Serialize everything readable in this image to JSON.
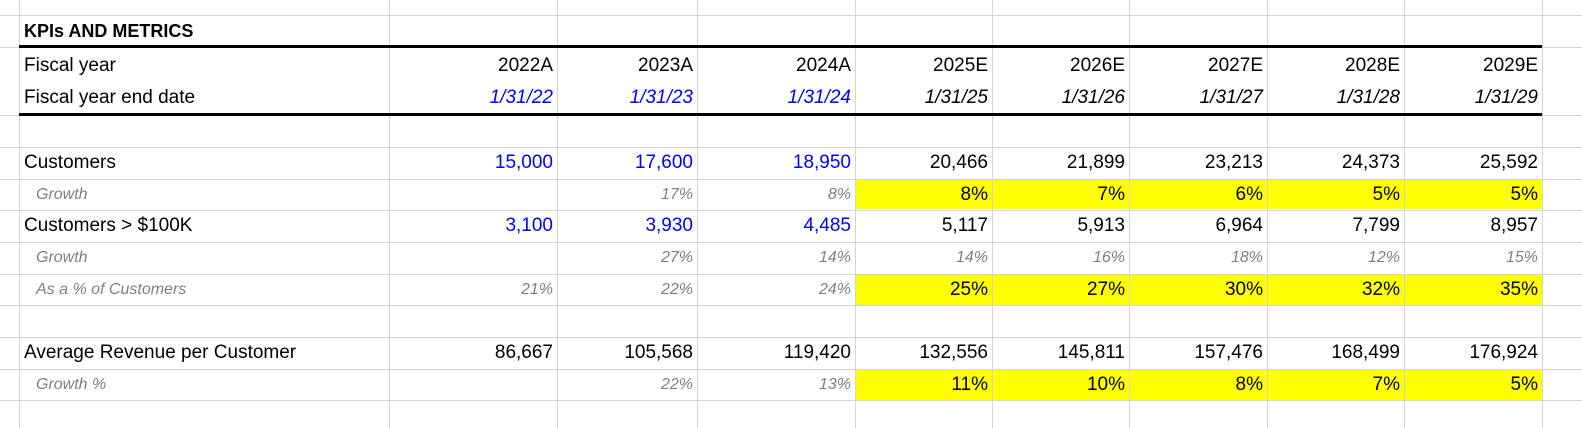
{
  "sheet": {
    "title": "KPIs AND METRICS",
    "fiscal_year_label": "Fiscal year",
    "fiscal_year_end_label": "Fiscal year end date",
    "years": [
      "2022A",
      "2023A",
      "2024A",
      "2025E",
      "2026E",
      "2027E",
      "2028E",
      "2029E"
    ],
    "end_dates": [
      "1/31/22",
      "1/31/23",
      "1/31/24",
      "1/31/25",
      "1/31/26",
      "1/31/27",
      "1/31/28",
      "1/31/29"
    ],
    "rows": [
      {
        "label": "Customers",
        "style": "main",
        "values": [
          "15,000",
          "17,600",
          "18,950",
          "20,466",
          "21,899",
          "23,213",
          "24,373",
          "25,592"
        ]
      },
      {
        "label": "Growth",
        "style": "sub",
        "values": [
          "",
          "17%",
          "8%",
          "8%",
          "7%",
          "6%",
          "5%",
          "5%"
        ]
      },
      {
        "label": "Customers > $100K",
        "style": "main",
        "values": [
          "3,100",
          "3,930",
          "4,485",
          "5,117",
          "5,913",
          "6,964",
          "7,799",
          "8,957"
        ]
      },
      {
        "label": "Growth",
        "style": "sub",
        "values": [
          "",
          "27%",
          "14%",
          "14%",
          "16%",
          "18%",
          "12%",
          "15%"
        ]
      },
      {
        "label": "As a % of Customers",
        "style": "sub",
        "values": [
          "21%",
          "22%",
          "24%",
          "25%",
          "27%",
          "30%",
          "32%",
          "35%"
        ]
      },
      {
        "label": "Average Revenue per Customer",
        "style": "main",
        "values": [
          "86,667",
          "105,568",
          "119,420",
          "132,556",
          "145,811",
          "157,476",
          "168,499",
          "176,924"
        ]
      },
      {
        "label": "Growth %",
        "style": "sub",
        "values": [
          "",
          "22%",
          "13%",
          "11%",
          "10%",
          "8%",
          "7%",
          "5%"
        ]
      }
    ],
    "colors": {
      "input_blue": "#0000ff",
      "assumption_highlight": "#ffff00",
      "subtle_gray": "#7f7f7f",
      "grid": "#d4d4d4"
    }
  }
}
